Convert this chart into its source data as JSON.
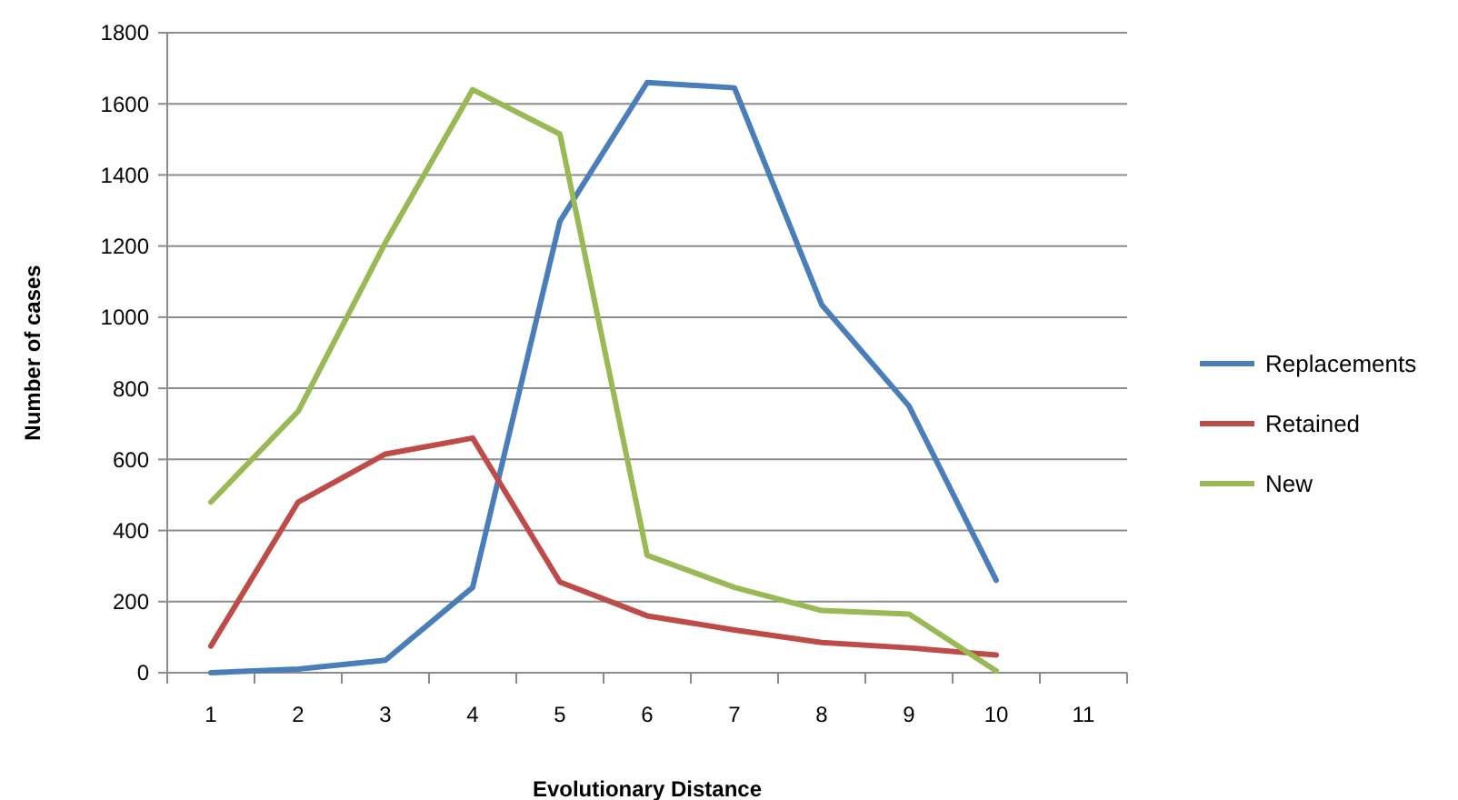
{
  "chart_data": {
    "type": "line",
    "xlabel": "Evolutionary Distance",
    "ylabel": "Number of cases",
    "categories": [
      "1",
      "2",
      "3",
      "4",
      "5",
      "6",
      "7",
      "8",
      "9",
      "10",
      "11"
    ],
    "series": [
      {
        "name": "Replacements",
        "color": "#4a7ebb",
        "values": [
          0,
          10,
          35,
          240,
          1270,
          1660,
          1645,
          1035,
          750,
          260,
          null
        ]
      },
      {
        "name": "Retained",
        "color": "#be4b48",
        "values": [
          75,
          480,
          615,
          660,
          255,
          160,
          120,
          85,
          70,
          50,
          null
        ]
      },
      {
        "name": "New",
        "color": "#98b954",
        "values": [
          480,
          735,
          1210,
          1640,
          1515,
          330,
          240,
          175,
          165,
          5,
          null
        ]
      }
    ],
    "ylim": [
      0,
      1800
    ],
    "yticks": [
      0,
      200,
      400,
      600,
      800,
      1000,
      1200,
      1400,
      1600,
      1800
    ],
    "grid": "y",
    "legend": "right",
    "marker": "none",
    "line_style": "solid"
  }
}
